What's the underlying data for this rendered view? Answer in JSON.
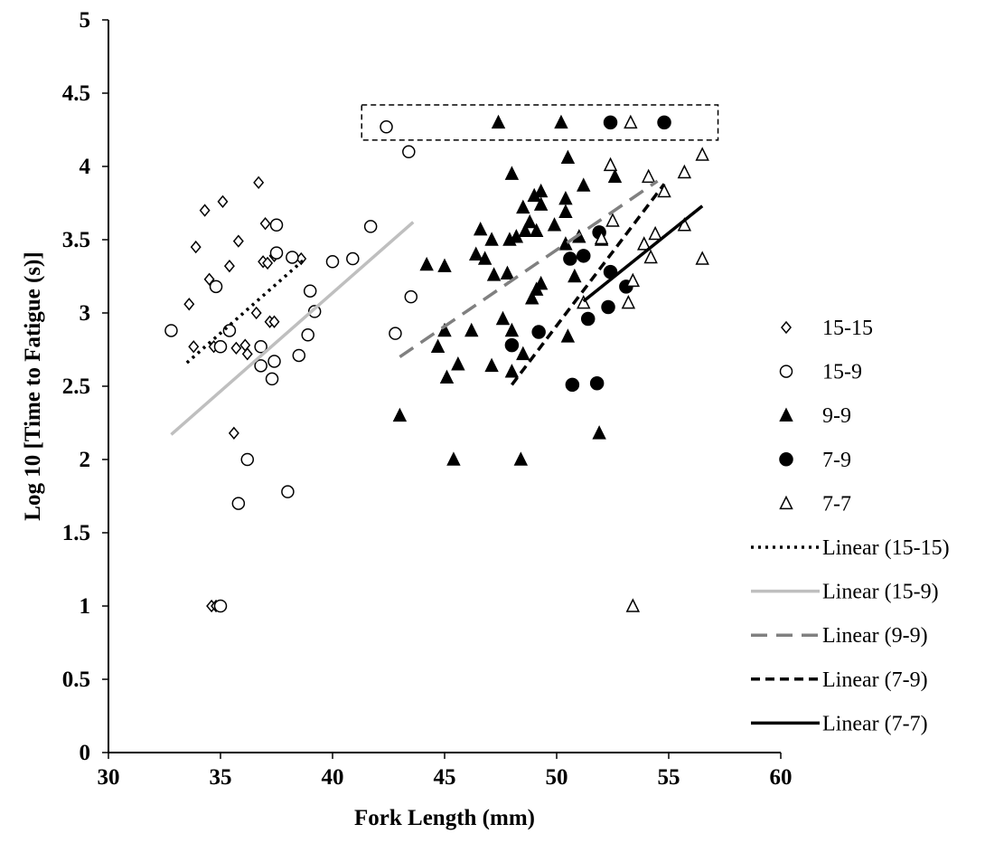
{
  "chart_data": {
    "type": "scatter",
    "xlabel": "Fork Length (mm)",
    "ylabel": "Log 10 [Time to Fatigue (s)]",
    "xlim": [
      30,
      60
    ],
    "ylim": [
      0,
      5
    ],
    "xticks": [
      "30",
      "35",
      "40",
      "45",
      "50",
      "55",
      "60"
    ],
    "yticks": [
      "0",
      "0.5",
      "1",
      "1.5",
      "2",
      "2.5",
      "3",
      "3.5",
      "4",
      "4.5",
      "5"
    ],
    "grid": false,
    "legend_position": "right",
    "series": [
      {
        "name": "15-15",
        "marker": "diamond-open",
        "color": "#000000",
        "points": [
          [
            36.7,
            3.89
          ],
          [
            35.1,
            3.76
          ],
          [
            34.3,
            3.7
          ],
          [
            37.0,
            3.61
          ],
          [
            33.9,
            3.45
          ],
          [
            35.8,
            3.49
          ],
          [
            37.4,
            3.39
          ],
          [
            36.9,
            3.35
          ],
          [
            38.6,
            3.37
          ],
          [
            34.5,
            3.23
          ],
          [
            35.4,
            3.32
          ],
          [
            33.6,
            3.06
          ],
          [
            37.1,
            3.34
          ],
          [
            36.6,
            3.0
          ],
          [
            37.2,
            2.94
          ],
          [
            37.4,
            2.94
          ],
          [
            33.8,
            2.77
          ],
          [
            34.7,
            2.77
          ],
          [
            35.7,
            2.76
          ],
          [
            36.1,
            2.78
          ],
          [
            36.2,
            2.72
          ],
          [
            35.6,
            2.18
          ],
          [
            34.6,
            1.0
          ],
          [
            34.8,
            1.0
          ]
        ]
      },
      {
        "name": "15-9",
        "marker": "circle-open",
        "color": "#000000",
        "points": [
          [
            42.4,
            4.27
          ],
          [
            43.4,
            4.1
          ],
          [
            41.7,
            3.59
          ],
          [
            37.5,
            3.6
          ],
          [
            37.5,
            3.41
          ],
          [
            38.2,
            3.38
          ],
          [
            40.0,
            3.35
          ],
          [
            40.9,
            3.37
          ],
          [
            34.8,
            3.18
          ],
          [
            39.0,
            3.15
          ],
          [
            32.8,
            2.88
          ],
          [
            35.4,
            2.88
          ],
          [
            39.2,
            3.01
          ],
          [
            43.5,
            3.11
          ],
          [
            38.9,
            2.85
          ],
          [
            42.8,
            2.86
          ],
          [
            35.0,
            2.77
          ],
          [
            36.8,
            2.77
          ],
          [
            38.5,
            2.71
          ],
          [
            37.4,
            2.67
          ],
          [
            36.8,
            2.64
          ],
          [
            37.3,
            2.55
          ],
          [
            36.2,
            2.0
          ],
          [
            38.0,
            1.78
          ],
          [
            35.8,
            1.7
          ],
          [
            35.0,
            1.0
          ]
        ]
      },
      {
        "name": "9-9",
        "marker": "triangle-filled",
        "color": "#000000",
        "points": [
          [
            47.4,
            4.3
          ],
          [
            50.2,
            4.3
          ],
          [
            50.5,
            4.06
          ],
          [
            48.0,
            3.95
          ],
          [
            49.3,
            3.83
          ],
          [
            49.0,
            3.8
          ],
          [
            51.2,
            3.87
          ],
          [
            50.4,
            3.78
          ],
          [
            52.6,
            3.93
          ],
          [
            48.5,
            3.72
          ],
          [
            49.3,
            3.74
          ],
          [
            50.4,
            3.69
          ],
          [
            48.8,
            3.62
          ],
          [
            49.1,
            3.56
          ],
          [
            49.9,
            3.6
          ],
          [
            46.6,
            3.57
          ],
          [
            47.1,
            3.5
          ],
          [
            47.9,
            3.5
          ],
          [
            48.2,
            3.52
          ],
          [
            48.6,
            3.56
          ],
          [
            50.4,
            3.47
          ],
          [
            51.0,
            3.52
          ],
          [
            52.0,
            3.5
          ],
          [
            46.4,
            3.4
          ],
          [
            46.8,
            3.37
          ],
          [
            44.2,
            3.33
          ],
          [
            45.0,
            3.32
          ],
          [
            47.2,
            3.26
          ],
          [
            47.8,
            3.27
          ],
          [
            50.8,
            3.25
          ],
          [
            49.3,
            3.2
          ],
          [
            49.1,
            3.16
          ],
          [
            48.9,
            3.1
          ],
          [
            47.6,
            2.96
          ],
          [
            45.0,
            2.88
          ],
          [
            46.2,
            2.88
          ],
          [
            48.0,
            2.88
          ],
          [
            44.7,
            2.77
          ],
          [
            50.5,
            2.84
          ],
          [
            48.5,
            2.72
          ],
          [
            45.6,
            2.65
          ],
          [
            47.1,
            2.64
          ],
          [
            48.0,
            2.6
          ],
          [
            45.1,
            2.56
          ],
          [
            43.0,
            2.3
          ],
          [
            51.9,
            2.18
          ],
          [
            45.4,
            2.0
          ],
          [
            48.4,
            2.0
          ]
        ]
      },
      {
        "name": "7-9",
        "marker": "circle-filled",
        "color": "#000000",
        "points": [
          [
            52.4,
            4.3
          ],
          [
            54.8,
            4.3
          ],
          [
            51.9,
            3.55
          ],
          [
            50.6,
            3.37
          ],
          [
            51.2,
            3.39
          ],
          [
            52.4,
            3.28
          ],
          [
            53.1,
            3.18
          ],
          [
            48.0,
            2.78
          ],
          [
            49.2,
            2.87
          ],
          [
            51.4,
            2.96
          ],
          [
            52.3,
            3.04
          ],
          [
            50.7,
            2.51
          ],
          [
            51.8,
            2.52
          ]
        ]
      },
      {
        "name": "7-7",
        "marker": "triangle-open",
        "color": "#000000",
        "points": [
          [
            53.3,
            4.3
          ],
          [
            56.5,
            4.08
          ],
          [
            52.4,
            4.01
          ],
          [
            55.7,
            3.96
          ],
          [
            54.1,
            3.93
          ],
          [
            54.8,
            3.83
          ],
          [
            52.5,
            3.63
          ],
          [
            55.7,
            3.6
          ],
          [
            54.4,
            3.54
          ],
          [
            53.9,
            3.47
          ],
          [
            52.0,
            3.51
          ],
          [
            56.5,
            3.37
          ],
          [
            54.2,
            3.38
          ],
          [
            53.4,
            3.22
          ],
          [
            51.2,
            3.07
          ],
          [
            53.2,
            3.07
          ],
          [
            53.4,
            1.0
          ]
        ]
      }
    ],
    "trendlines": [
      {
        "name": "Linear (15-15)",
        "style": "dotted",
        "color": "#000000",
        "x": [
          33.5,
          38.7
        ],
        "y": [
          2.66,
          3.36
        ]
      },
      {
        "name": "Linear (15-9)",
        "style": "solid",
        "color": "#bfbfbf",
        "x": [
          32.8,
          43.6
        ],
        "y": [
          2.17,
          3.62
        ]
      },
      {
        "name": "Linear (9-9)",
        "style": "long-dash",
        "color": "#808080",
        "x": [
          43.0,
          54.5
        ],
        "y": [
          2.7,
          3.9
        ]
      },
      {
        "name": "Linear (7-9)",
        "style": "dash",
        "color": "#000000",
        "x": [
          48.0,
          54.8
        ],
        "y": [
          2.51,
          3.88
        ]
      },
      {
        "name": "Linear (7-7)",
        "style": "solid",
        "color": "#000000",
        "x": [
          51.2,
          56.5
        ],
        "y": [
          3.08,
          3.73
        ]
      }
    ],
    "highlight_box": {
      "style": "dashed",
      "x": [
        41.3,
        57.2
      ],
      "y": [
        4.18,
        4.42
      ]
    }
  }
}
